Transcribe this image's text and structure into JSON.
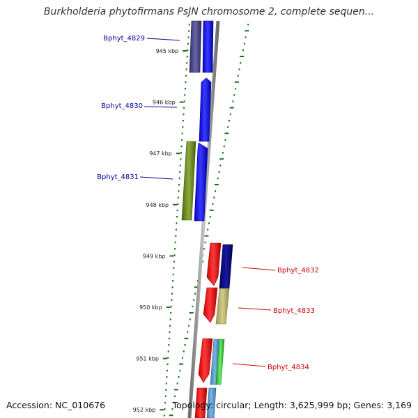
{
  "title": "Burkholderia phytofirmans PsJN chromosome 2, complete sequen...",
  "footer": {
    "accession": "Accession: NC_010676",
    "stats": "Topology: circular; Length: 3,625,999 bp; Genes: 3,169"
  },
  "scale": {
    "unit": "kbp",
    "ticks": [
      {
        "kbp": 945,
        "label": "945 kbp"
      },
      {
        "kbp": 946,
        "label": "946 kbp"
      },
      {
        "kbp": 947,
        "label": "947 kbp"
      },
      {
        "kbp": 948,
        "label": "948 kbp"
      },
      {
        "kbp": 949,
        "label": "949 kbp"
      },
      {
        "kbp": 950,
        "label": "950 kbp"
      },
      {
        "kbp": 951,
        "label": "951 kbp"
      },
      {
        "kbp": 952,
        "label": "952 kbp"
      }
    ]
  },
  "gene_labels": [
    {
      "name": "Bphyt_4829",
      "strand": "left"
    },
    {
      "name": "Bphyt_4830",
      "strand": "left"
    },
    {
      "name": "Bphyt_4831",
      "strand": "left"
    },
    {
      "name": "Bphyt_4832",
      "strand": "right"
    },
    {
      "name": "Bphyt_4833",
      "strand": "right"
    },
    {
      "name": "Bphyt_4834",
      "strand": "right"
    }
  ],
  "colors": {
    "left_label": "#000099",
    "right_label": "#cc0000",
    "tick": "#1f6e1f",
    "backbone": "#8a8a8a",
    "blue": "#1a1aff",
    "purple": "#4a4585",
    "olive": "#6b8a24",
    "red": "#ee1111",
    "navy": "#0a0a80",
    "khaki": "#bdb76b",
    "steel": "#5a9ad0",
    "green": "#33cc33"
  }
}
